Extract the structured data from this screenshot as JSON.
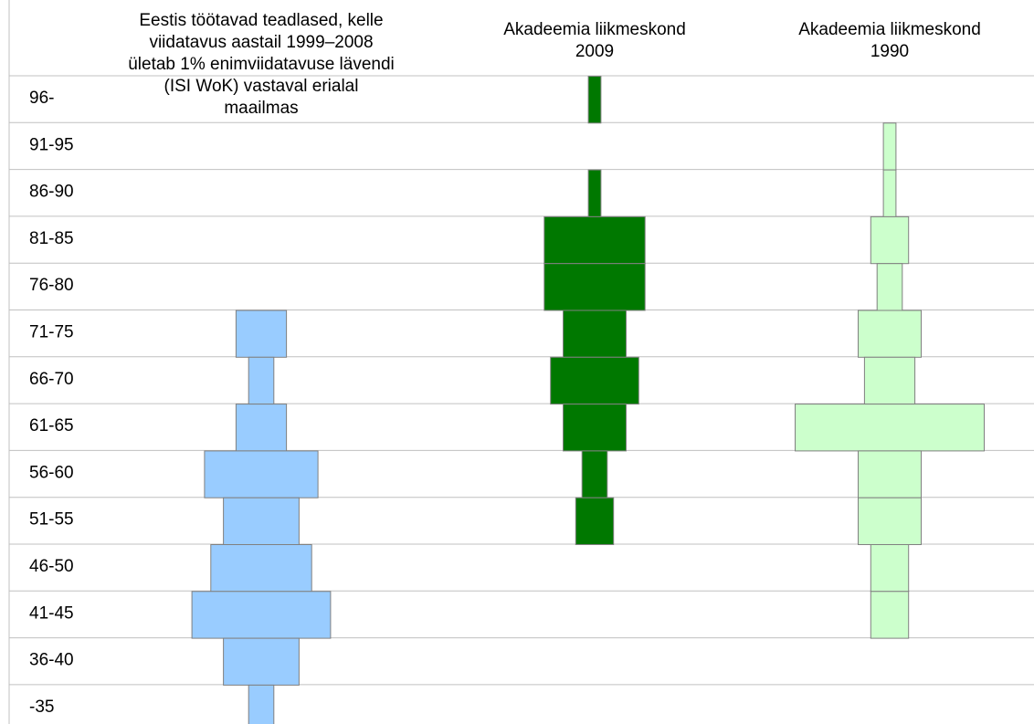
{
  "chart_data": {
    "type": "bar",
    "categories": [
      "96-",
      "91-95",
      "86-90",
      "81-85",
      "76-80",
      "71-75",
      "66-70",
      "61-65",
      "56-60",
      "51-55",
      "46-50",
      "41-45",
      "36-40",
      "-35"
    ],
    "series": [
      {
        "name": "Eestis töötavad teadlased, kelle viidatavus aastail 1999–2008 ületab 1% enimviidatavuse lävendi (ISI WoK) vastaval erialal maailmas",
        "title_lines": [
          "Eestis töötavad teadlased, kelle",
          "viidatavus aastail 1999–2008",
          "ületab 1% enimviidatavuse lävendi",
          "(ISI WoK) vastaval erialal",
          "maailmas"
        ],
        "color": "#99ccff",
        "values": [
          0,
          0,
          0,
          0,
          0,
          4,
          2,
          4,
          9,
          6,
          8,
          11,
          6,
          2
        ]
      },
      {
        "name": "Akadeemia liikmeskond 2009",
        "title_lines": [
          "Akadeemia liikmeskond",
          "2009"
        ],
        "color": "#007800",
        "values": [
          1,
          0,
          1,
          8,
          8,
          5,
          7,
          5,
          2,
          3,
          0,
          0,
          0,
          0
        ]
      },
      {
        "name": "Akadeemia liikmeskond 1990",
        "title_lines": [
          "Akadeemia liikmeskond",
          "1990"
        ],
        "color": "#ccffcc",
        "values": [
          0,
          1,
          1,
          3,
          2,
          5,
          4,
          15,
          5,
          5,
          3,
          3,
          0,
          0
        ]
      }
    ],
    "grid": true,
    "legend": "none"
  }
}
